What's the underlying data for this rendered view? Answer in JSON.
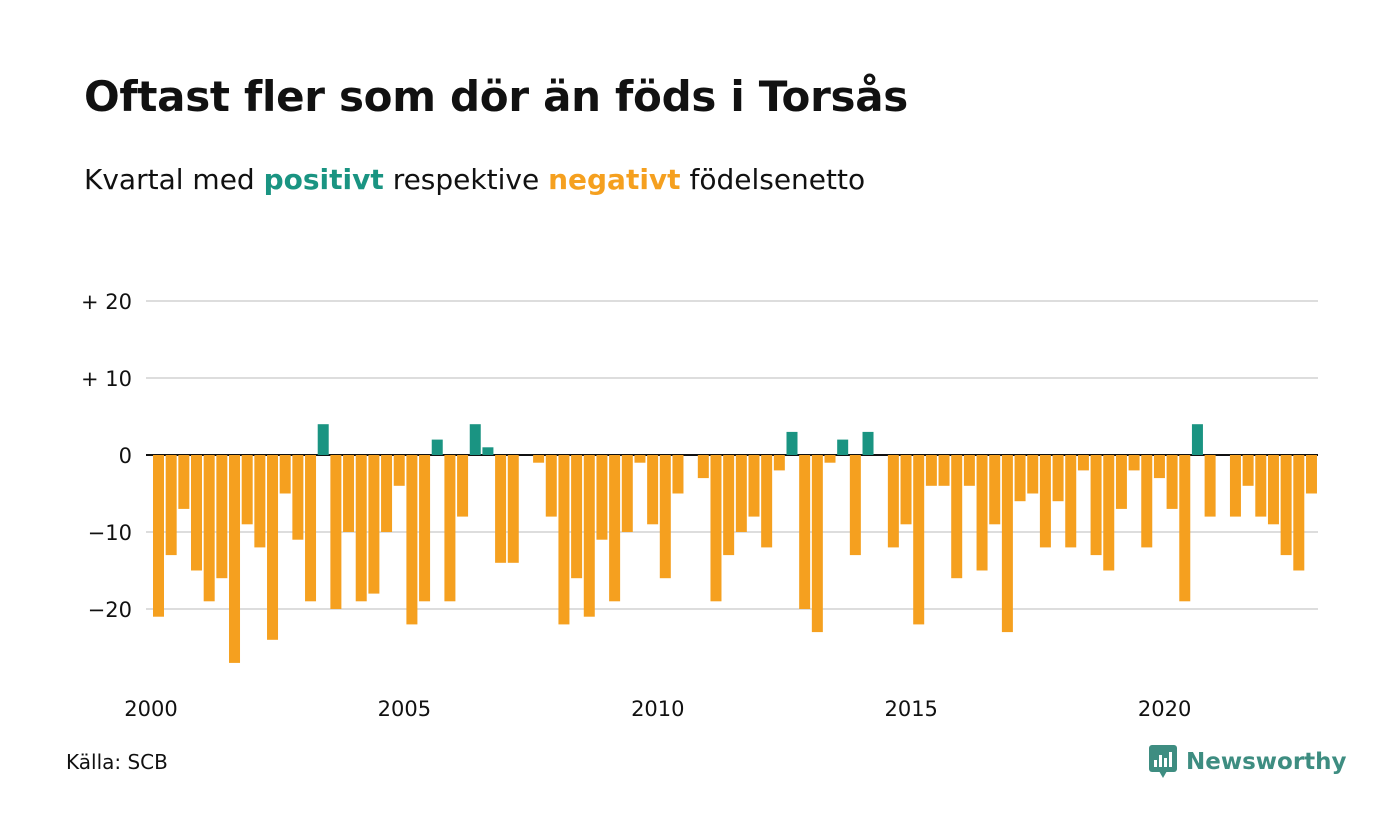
{
  "title": "Oftast fler som dör än föds i Torsås",
  "subtitle": {
    "prefix": "Kvartal med",
    "positive_word": "positivt",
    "middle": "respektive",
    "negative_word": "negativt",
    "suffix": "födelsenetto"
  },
  "source": "Källa: SCB",
  "logo": {
    "text": "Newsworthy",
    "icon": "newsworthy-chart-icon"
  },
  "colors": {
    "positive": "#1a9482",
    "negative": "#f5a01f",
    "grid": "#dddddd",
    "logo": "#3e8d81"
  },
  "chart_data": {
    "type": "bar",
    "xlabel": "",
    "ylabel": "",
    "ylim": [
      -29,
      22
    ],
    "y_ticks": [
      {
        "value": 20,
        "label": "+ 20"
      },
      {
        "value": 10,
        "label": "+ 10"
      },
      {
        "value": 0,
        "label": "0"
      },
      {
        "value": -10,
        "label": "−10"
      },
      {
        "value": -20,
        "label": "−20"
      }
    ],
    "x_ticks": [
      "2000",
      "2005",
      "2010",
      "2015",
      "2020"
    ],
    "start_period": "2000 Q1",
    "grid": true,
    "legend": "none",
    "values": [
      -21,
      -13,
      -7,
      -15,
      -19,
      -16,
      -27,
      -9,
      -12,
      -24,
      -5,
      -11,
      -19,
      4,
      -20,
      -10,
      -19,
      -18,
      -10,
      -4,
      -22,
      -19,
      2,
      -19,
      -8,
      4,
      1,
      -14,
      -14,
      0,
      -1,
      -8,
      -22,
      -16,
      -21,
      -11,
      -19,
      -10,
      -1,
      -9,
      -16,
      -5,
      0,
      -3,
      -19,
      -13,
      -10,
      -8,
      -12,
      -2,
      3,
      -20,
      -23,
      -1,
      2,
      -13,
      3,
      0,
      -12,
      -9,
      -22,
      -4,
      -4,
      -16,
      -4,
      -15,
      -9,
      -23,
      -6,
      -5,
      -12,
      -6,
      -12,
      -2,
      -13,
      -15,
      -7,
      -2,
      -12,
      -3,
      -7,
      -19,
      4,
      -8,
      0,
      -8,
      -4,
      -8,
      -9,
      -13,
      -15,
      -5
    ]
  }
}
